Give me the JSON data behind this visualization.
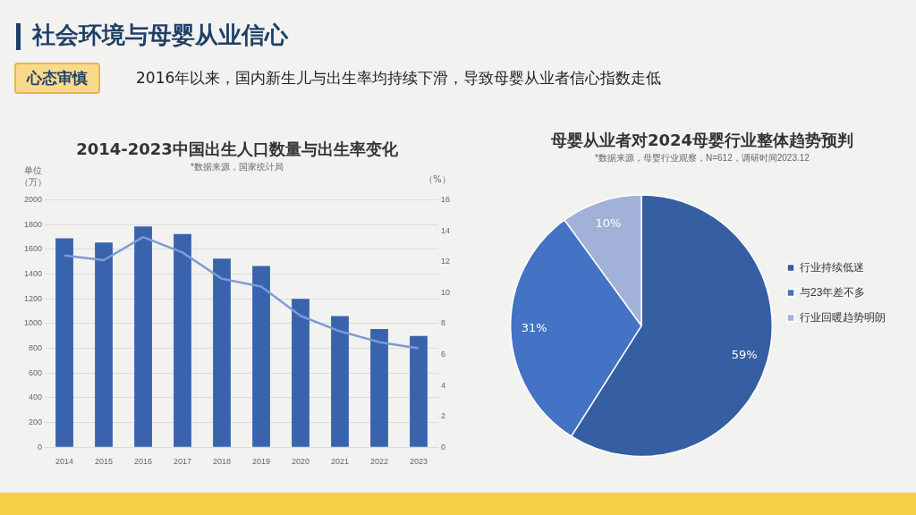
{
  "chart_data": [
    {
      "type": "bar",
      "title": "2014-2023中国出生人口数量与出生率变化",
      "subtitle": "*数据来源，国家统计局",
      "ylabel": "单位（万）",
      "y2label": "（%）",
      "annotations": [
        "社会环境与母婴从业信心",
        "心态审慎",
        "2016年以来，国内新生儿与出生率均持续下滑，导致母婴从业者信心指数走低"
      ],
      "categories": [
        "2014",
        "2015",
        "2016",
        "2017",
        "2018",
        "2019",
        "2020",
        "2021",
        "2022",
        "2023"
      ],
      "series": [
        {
          "type": "bar",
          "color": "#3a63ad",
          "values": [
            1690,
            1655,
            1785,
            1725,
            1525,
            1465,
            1200,
            1060,
            955,
            900
          ]
        },
        {
          "type": "line",
          "axis": "y2",
          "color": "#7f9bd6",
          "marker": "none",
          "values": [
            12.4,
            12.1,
            13.6,
            12.6,
            10.9,
            10.4,
            8.5,
            7.5,
            6.8,
            6.4
          ]
        }
      ],
      "ylim": [
        0,
        2000
      ],
      "yticks": [
        0,
        200,
        400,
        600,
        800,
        1000,
        1200,
        1400,
        1600,
        1800,
        2000
      ],
      "y2lim": [
        0,
        16
      ],
      "y2ticks": [
        0,
        2,
        4,
        6,
        8,
        10,
        12,
        14,
        16
      ],
      "grid": "y",
      "legend": false
    },
    {
      "type": "pie",
      "title": "母婴从业者对2024母婴行业整体趋势预判",
      "subtitle": "*数据来源，母婴行业观察，N=612，调研时间2023.12",
      "categories": [
        "行业持续低迷",
        "与23年差不多",
        "行业回暖趋势明朗"
      ],
      "values": [
        59,
        31,
        10
      ],
      "colors": [
        "#355ea3",
        "#4472c4",
        "#a2b1d8"
      ],
      "value_labels": [
        "59%",
        "31%",
        "10%"
      ],
      "legend": "right"
    }
  ]
}
